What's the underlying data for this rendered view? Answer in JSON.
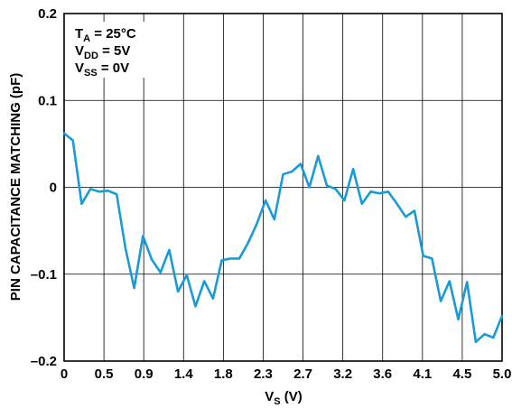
{
  "chart_data": {
    "type": "line",
    "title": "",
    "xlabel_main": "V",
    "xlabel_sub": "S",
    "xlabel_unit": " (V)",
    "ylabel": "PIN CAPACITANCE MATCHING (pF)",
    "xlim": [
      0,
      5.0
    ],
    "ylim": [
      -0.2,
      0.2
    ],
    "x_tick_labels": [
      "0",
      "0.5",
      "0.9",
      "1.4",
      "1.8",
      "2.3",
      "2.7",
      "3.2",
      "3.6",
      "4.1",
      "4.5",
      "5.0"
    ],
    "y_tick_values": [
      -0.2,
      -0.1,
      0,
      0.1,
      0.2
    ],
    "y_tick_labels": [
      "–0.2",
      "–0.1",
      "0",
      "0.1",
      "0.2"
    ],
    "grid": true,
    "line_color": "#1a9ad6",
    "annotations": [
      {
        "main": "T",
        "sub": "A",
        "rest": " = 25°C"
      },
      {
        "main": "V",
        "sub": "DD",
        "rest": " = 5V"
      },
      {
        "main": "V",
        "sub": "SS",
        "rest": " = 0V"
      }
    ],
    "series": [
      {
        "x": [
          0,
          0.1,
          0.2,
          0.3,
          0.4,
          0.5,
          0.6,
          0.7,
          0.8,
          0.9,
          1.0,
          1.1,
          1.2,
          1.3,
          1.4,
          1.5,
          1.6,
          1.7,
          1.8,
          1.9,
          2.0,
          2.1,
          2.2,
          2.3,
          2.4,
          2.5,
          2.6,
          2.7,
          2.8,
          2.9,
          3.0,
          3.1,
          3.2,
          3.3,
          3.4,
          3.5,
          3.6,
          3.7,
          3.8,
          3.9,
          4.0,
          4.1,
          4.2,
          4.3,
          4.4,
          4.5,
          4.6,
          4.7,
          4.8,
          4.9,
          5.0
        ],
        "y": [
          0.062,
          0.054,
          -0.019,
          -0.002,
          -0.005,
          -0.004,
          -0.008,
          -0.07,
          -0.116,
          -0.056,
          -0.083,
          -0.098,
          -0.072,
          -0.12,
          -0.101,
          -0.137,
          -0.108,
          -0.128,
          -0.084,
          -0.082,
          -0.082,
          -0.064,
          -0.042,
          -0.015,
          -0.037,
          0.015,
          0.018,
          0.027,
          0.0,
          0.036,
          0.002,
          -0.002,
          -0.015,
          0.021,
          -0.019,
          -0.005,
          -0.007,
          -0.005,
          -0.019,
          -0.034,
          -0.027,
          -0.079,
          -0.082,
          -0.131,
          -0.108,
          -0.152,
          -0.109,
          -0.178,
          -0.169,
          -0.173,
          -0.148
        ]
      }
    ]
  }
}
